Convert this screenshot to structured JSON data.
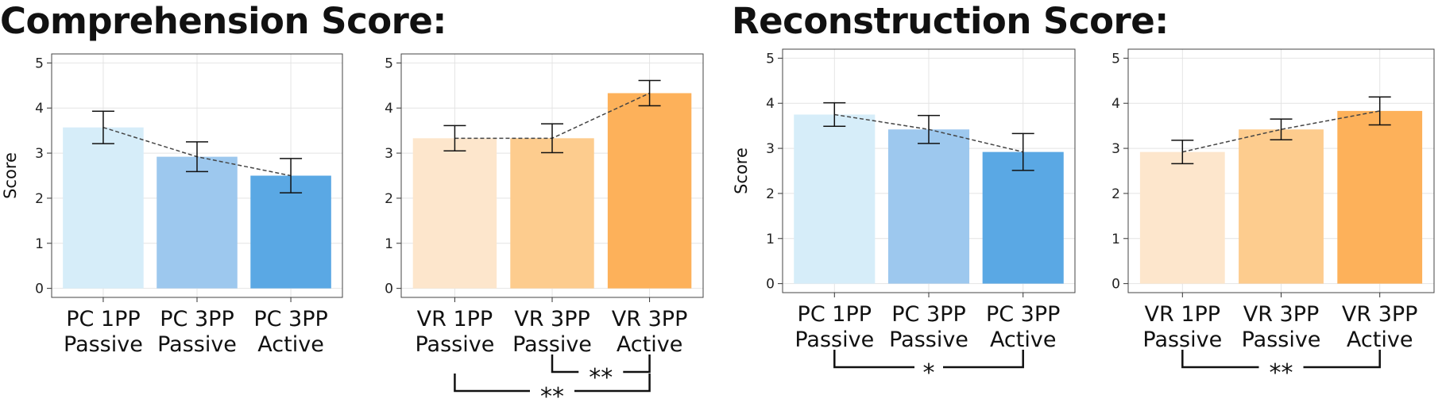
{
  "sections": [
    {
      "title": "Comprehension Score:"
    },
    {
      "title": "Reconstruction Score:"
    }
  ],
  "chart_data": [
    {
      "type": "bar",
      "section": 0,
      "ylabel": "Score",
      "ylim": [
        0,
        5
      ],
      "yticks": [
        0,
        1,
        2,
        3,
        4,
        5
      ],
      "grid": true,
      "categories": [
        [
          "PC 1PP",
          "Passive"
        ],
        [
          "PC 3PP",
          "Passive"
        ],
        [
          "PC 3PP",
          "Active"
        ]
      ],
      "values": [
        3.57,
        2.92,
        2.5
      ],
      "errors": [
        0.36,
        0.33,
        0.38
      ],
      "colors": [
        "#d6edf9",
        "#9dc8ee",
        "#5aa8e4"
      ],
      "trend_line": true,
      "significance": []
    },
    {
      "type": "bar",
      "section": 0,
      "ylabel": "",
      "ylim": [
        0,
        5
      ],
      "yticks": [
        0,
        1,
        2,
        3,
        4,
        5
      ],
      "grid": true,
      "categories": [
        [
          "VR 1PP",
          "Passive"
        ],
        [
          "VR 3PP",
          "Passive"
        ],
        [
          "VR 3PP",
          "Active"
        ]
      ],
      "values": [
        3.33,
        3.33,
        4.33
      ],
      "errors": [
        0.28,
        0.32,
        0.28
      ],
      "colors": [
        "#fde6cc",
        "#fdcc8e",
        "#fdb15a"
      ],
      "trend_line": true,
      "significance": [
        {
          "from": 1,
          "to": 2,
          "label": "**",
          "level": 0
        },
        {
          "from": 0,
          "to": 2,
          "label": "**",
          "level": 1
        }
      ]
    },
    {
      "type": "bar",
      "section": 1,
      "ylabel": "Score",
      "ylim": [
        0,
        5
      ],
      "yticks": [
        0,
        1,
        2,
        3,
        4,
        5
      ],
      "grid": true,
      "categories": [
        [
          "PC 1PP",
          "Passive"
        ],
        [
          "PC 3PP",
          "Passive"
        ],
        [
          "PC 3PP",
          "Active"
        ]
      ],
      "values": [
        3.75,
        3.42,
        2.92
      ],
      "errors": [
        0.26,
        0.31,
        0.41
      ],
      "colors": [
        "#d6edf9",
        "#9dc8ee",
        "#5aa8e4"
      ],
      "trend_line": true,
      "significance": [
        {
          "from": 0,
          "to": 2,
          "label": "*",
          "level": 0
        }
      ]
    },
    {
      "type": "bar",
      "section": 1,
      "ylabel": "",
      "ylim": [
        0,
        5
      ],
      "yticks": [
        0,
        1,
        2,
        3,
        4,
        5
      ],
      "grid": true,
      "categories": [
        [
          "VR 1PP",
          "Passive"
        ],
        [
          "VR 3PP",
          "Passive"
        ],
        [
          "VR 3PP",
          "Active"
        ]
      ],
      "values": [
        2.92,
        3.42,
        3.83
      ],
      "errors": [
        0.26,
        0.23,
        0.31
      ],
      "colors": [
        "#fde6cc",
        "#fdcc8e",
        "#fdb15a"
      ],
      "trend_line": true,
      "significance": [
        {
          "from": 0,
          "to": 2,
          "label": "**",
          "level": 0
        }
      ]
    }
  ]
}
